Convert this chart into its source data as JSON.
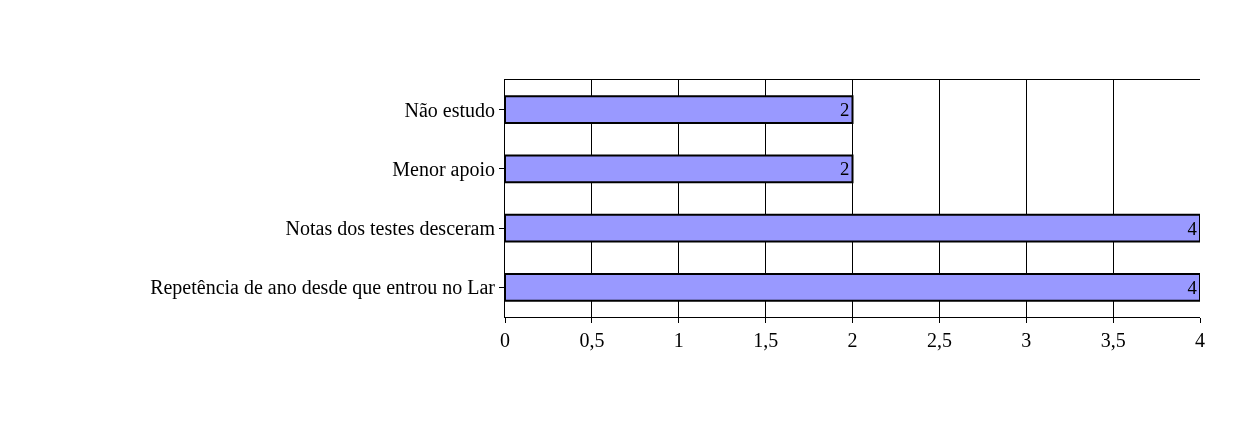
{
  "chart_data": {
    "type": "bar",
    "orientation": "horizontal",
    "categories": [
      "Não estudo",
      "Menor apoio",
      "Notas dos testes desceram",
      "Repetência de ano desde que entrou no Lar"
    ],
    "values": [
      2,
      2,
      4,
      4
    ],
    "color": "#9999ff",
    "xlim": [
      0,
      4
    ],
    "xticks": [
      0,
      {
        "value": 0.5,
        "label": "0,5"
      },
      1,
      {
        "value": 1.5,
        "label": "1,5"
      },
      2,
      {
        "value": 2.5,
        "label": "2,5"
      },
      3,
      {
        "value": 3.5,
        "label": "3,5"
      },
      4
    ],
    "grid": "x",
    "data_labels": true
  }
}
